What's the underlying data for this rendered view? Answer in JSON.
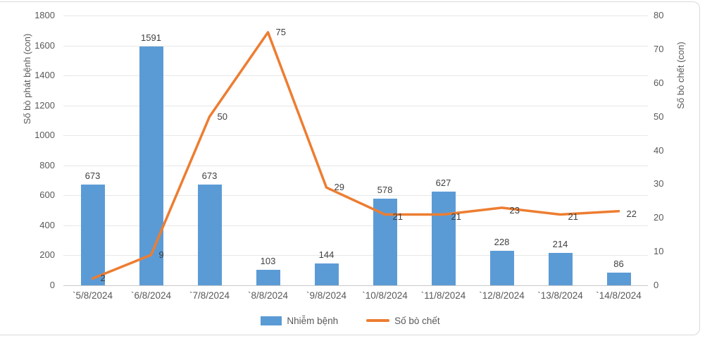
{
  "chart_data": {
    "type": "bar",
    "subtype": "combo-bar-line",
    "categories": [
      "`5/8/2024",
      "`6/8/2024",
      "`7/8/2024",
      "`8/8/2024",
      "`9/8/2024",
      "`10/8/2024",
      "`11/8/2024",
      "`12/8/2024",
      "`13/8/2024",
      "`14/8/2024"
    ],
    "series": [
      {
        "name": "Nhiễm bệnh",
        "kind": "bar",
        "axis": "left",
        "color": "#5b9bd5",
        "values": [
          673,
          1591,
          673,
          103,
          144,
          578,
          627,
          228,
          214,
          86
        ]
      },
      {
        "name": "Số bò chết",
        "kind": "line",
        "axis": "right",
        "color": "#ed7d31",
        "values": [
          2,
          9,
          50,
          75,
          29,
          21,
          21,
          23,
          21,
          22
        ]
      }
    ],
    "left_axis": {
      "title": "Số bò phát bệnh (con)",
      "min": 0,
      "max": 1800,
      "step": 200,
      "ticks": [
        "1800",
        "1600",
        "1400",
        "1200",
        "1000",
        "800",
        "600",
        "400",
        "200",
        "0"
      ]
    },
    "right_axis": {
      "title": "Số bò chết (con)",
      "min": 0,
      "max": 80,
      "step": 10,
      "ticks": [
        "80",
        "70",
        "60",
        "50",
        "40",
        "30",
        "20",
        "10",
        "0"
      ]
    },
    "legend": {
      "position": "bottom"
    },
    "grid": "horizontal",
    "data_labels": true,
    "colors": {
      "bar": "#5b9bd5",
      "line": "#ed7d31",
      "gridline": "#e7e7e7",
      "axis_baseline": "#c9c9c9",
      "tick_text": "#595959",
      "label_text": "#404040",
      "frame_border": "#d9d9d9"
    }
  }
}
